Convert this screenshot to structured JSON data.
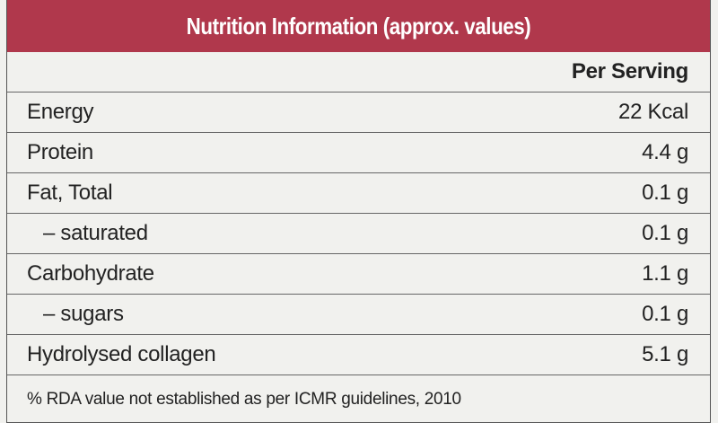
{
  "title": "Nutrition Information (approx. values)",
  "column_header": "Per Serving",
  "rows": [
    {
      "nutrient": "Energy",
      "value": "22 Kcal"
    },
    {
      "nutrient": "Protein",
      "value": "4.4 g"
    },
    {
      "nutrient": "Fat, Total",
      "value": "0.1 g"
    },
    {
      "nutrient": "– saturated",
      "value": "0.1 g"
    },
    {
      "nutrient": "Carbohydrate",
      "value": "1.1 g"
    },
    {
      "nutrient": "– sugars",
      "value": "0.1 g"
    },
    {
      "nutrient": "Hydrolysed collagen",
      "value": "5.1 g"
    }
  ],
  "footnote": "% RDA value not established as per ICMR guidelines, 2010",
  "colors": {
    "header_background": "#b0384c",
    "header_text": "#ffffff",
    "table_background": "#f1f1ee",
    "rule_color": "#666666"
  }
}
